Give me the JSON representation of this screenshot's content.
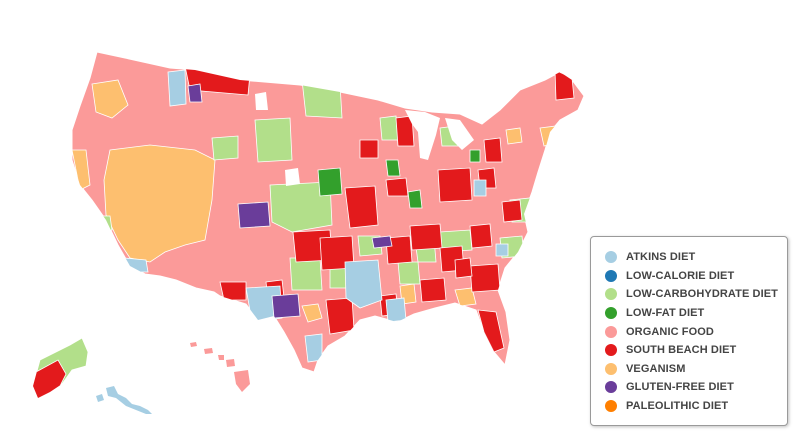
{
  "colors": {
    "atkins": "#a6cee3",
    "lowcal": "#1f78b4",
    "lowcarb": "#b2df8a",
    "lowfat": "#33a02c",
    "organic": "#fb9a99",
    "southbeach": "#e31a1c",
    "veganism": "#fdbf6f",
    "gluten": "#6a3d9a",
    "paleo": "#ff7f00",
    "border": "#ffffff"
  },
  "legend": {
    "items": [
      {
        "key": "atkins",
        "label": "ATKINS DIET"
      },
      {
        "key": "lowcal",
        "label": "LOW-CALORIE DIET"
      },
      {
        "key": "lowcarb",
        "label": "LOW-CARBOHYDRATE DIET"
      },
      {
        "key": "lowfat",
        "label": "LOW-FAT DIET"
      },
      {
        "key": "organic",
        "label": "ORGANIC FOOD"
      },
      {
        "key": "southbeach",
        "label": "SOUTH BEACH DIET"
      },
      {
        "key": "veganism",
        "label": "VEGANISM"
      },
      {
        "key": "gluten",
        "label": "GLUTEN-FREE DIET"
      },
      {
        "key": "paleo",
        "label": "PALEOLITHIC DIET"
      }
    ]
  }
}
